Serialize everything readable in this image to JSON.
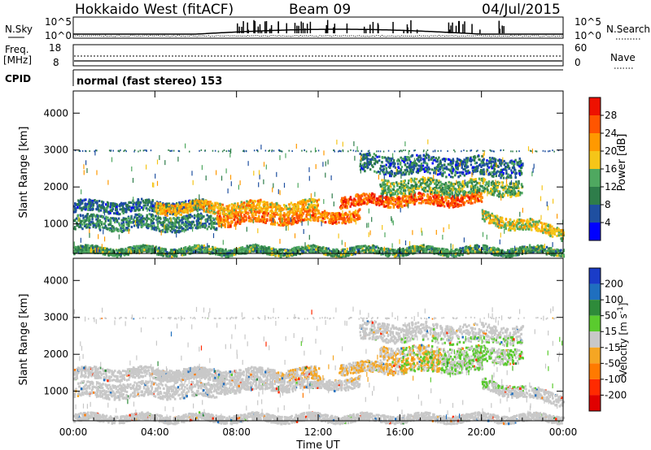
{
  "header": {
    "station": "Hokkaido West (fitACF)",
    "beam": "Beam 09",
    "date": "04/Jul/2015"
  },
  "noise_panel": {
    "left_label": "N.Sky",
    "right_label": "N.Search",
    "left_top_tick": "10^5",
    "left_bottom_tick": "10^0",
    "right_top_tick": "10^5",
    "right_bottom_tick": "10^0"
  },
  "freq_panel": {
    "left_label_line1": "Freq.",
    "left_label_line2": "[MHz]",
    "left_top_tick": "18",
    "left_bottom_tick": "8",
    "right_label": "Nave",
    "right_top_tick": "60",
    "right_bottom_tick": "0"
  },
  "cpid_panel": {
    "label": "CPID",
    "text": "normal (fast stereo) 153"
  },
  "x_axis": {
    "title": "Time UT",
    "ticks": [
      "00:00",
      "04:00",
      "08:00",
      "12:00",
      "16:00",
      "20:00",
      "00:00"
    ]
  },
  "power_panel": {
    "ylabel": "Slant Range [km]",
    "yticks": [
      "1000",
      "2000",
      "3000",
      "4000"
    ],
    "colorbar_label": "Power [dB]",
    "colorbar_ticks": [
      "4",
      "8",
      "12",
      "16",
      "20",
      "24",
      "28"
    ],
    "colors": [
      "#0000ff",
      "#1f4fa0",
      "#2e7d4a",
      "#4fa860",
      "#f5c518",
      "#ff9900",
      "#ff5500",
      "#ee1100"
    ]
  },
  "velocity_panel": {
    "ylabel": "Slant Range [km]",
    "yticks": [
      "1000",
      "2000",
      "3000",
      "4000"
    ],
    "colorbar_label": "Velocity [m s^-1]",
    "colorbar_ticks": [
      "200",
      "100",
      "50",
      "15",
      "-15",
      "-50",
      "-100",
      "-200"
    ],
    "colors": [
      "#1a3cc8",
      "#1f6fbf",
      "#2e8b3a",
      "#5acb2e",
      "#c8c8c8",
      "#f5a623",
      "#ff7a00",
      "#ff2a00",
      "#e00000"
    ]
  },
  "chart_data": {
    "type": "heatmap",
    "x": {
      "label": "Time UT",
      "unit": "hour",
      "range": [
        0,
        24
      ]
    },
    "y": {
      "label": "Slant Range [km]",
      "range": [
        200,
        4600
      ]
    },
    "power": {
      "colorbar_range_dB": [
        0,
        32
      ],
      "scatter_regions": [
        {
          "t": [
            0,
            6.5
          ],
          "r_center_start": 1500,
          "r_center_end": 1500,
          "halfwidth": 150,
          "level_dB": 8
        },
        {
          "t": [
            0,
            7
          ],
          "r_center_start": 1050,
          "r_center_end": 1050,
          "halfwidth": 200,
          "level_dB": 10
        },
        {
          "t": [
            0,
            24
          ],
          "r_center_start": 300,
          "r_center_end": 300,
          "halfwidth": 100,
          "level_dB": 12
        },
        {
          "t": [
            4,
            12
          ],
          "r_center_start": 1450,
          "r_center_end": 1500,
          "halfwidth": 150,
          "level_dB": 20
        },
        {
          "t": [
            7,
            14
          ],
          "r_center_start": 1150,
          "r_center_end": 1250,
          "halfwidth": 150,
          "level_dB": 24
        },
        {
          "t": [
            13,
            20
          ],
          "r_center_start": 1650,
          "r_center_end": 1700,
          "halfwidth": 150,
          "level_dB": 26
        },
        {
          "t": [
            15,
            22
          ],
          "r_center_start": 2050,
          "r_center_end": 2000,
          "halfwidth": 200,
          "level_dB": 14
        },
        {
          "t": [
            14,
            22
          ],
          "r_center_start": 2650,
          "r_center_end": 2550,
          "halfwidth": 250,
          "level_dB": 8
        },
        {
          "t": [
            20,
            24
          ],
          "r_center_start": 1200,
          "r_center_end": 800,
          "halfwidth": 150,
          "level_dB": 18
        }
      ],
      "ground_scatter_ranges_km": [],
      "line_at_range_km": 3000
    },
    "velocity": {
      "colorbar_range": [
        -200,
        200
      ],
      "dominant_value": 0,
      "notes_regions": [
        {
          "t": [
            16,
            24
          ],
          "r": [
            1100,
            2500
          ],
          "velocity": 30
        },
        {
          "t": [
            10,
            18
          ],
          "r": [
            1300,
            2300
          ],
          "velocity": -30
        }
      ]
    },
    "noise_sky_range": [
      1,
      100000
    ],
    "freq_range_MHz": [
      8,
      18
    ],
    "nave_range": [
      0,
      60
    ],
    "freq_value_MHz": 11,
    "nave_value": 10
  }
}
